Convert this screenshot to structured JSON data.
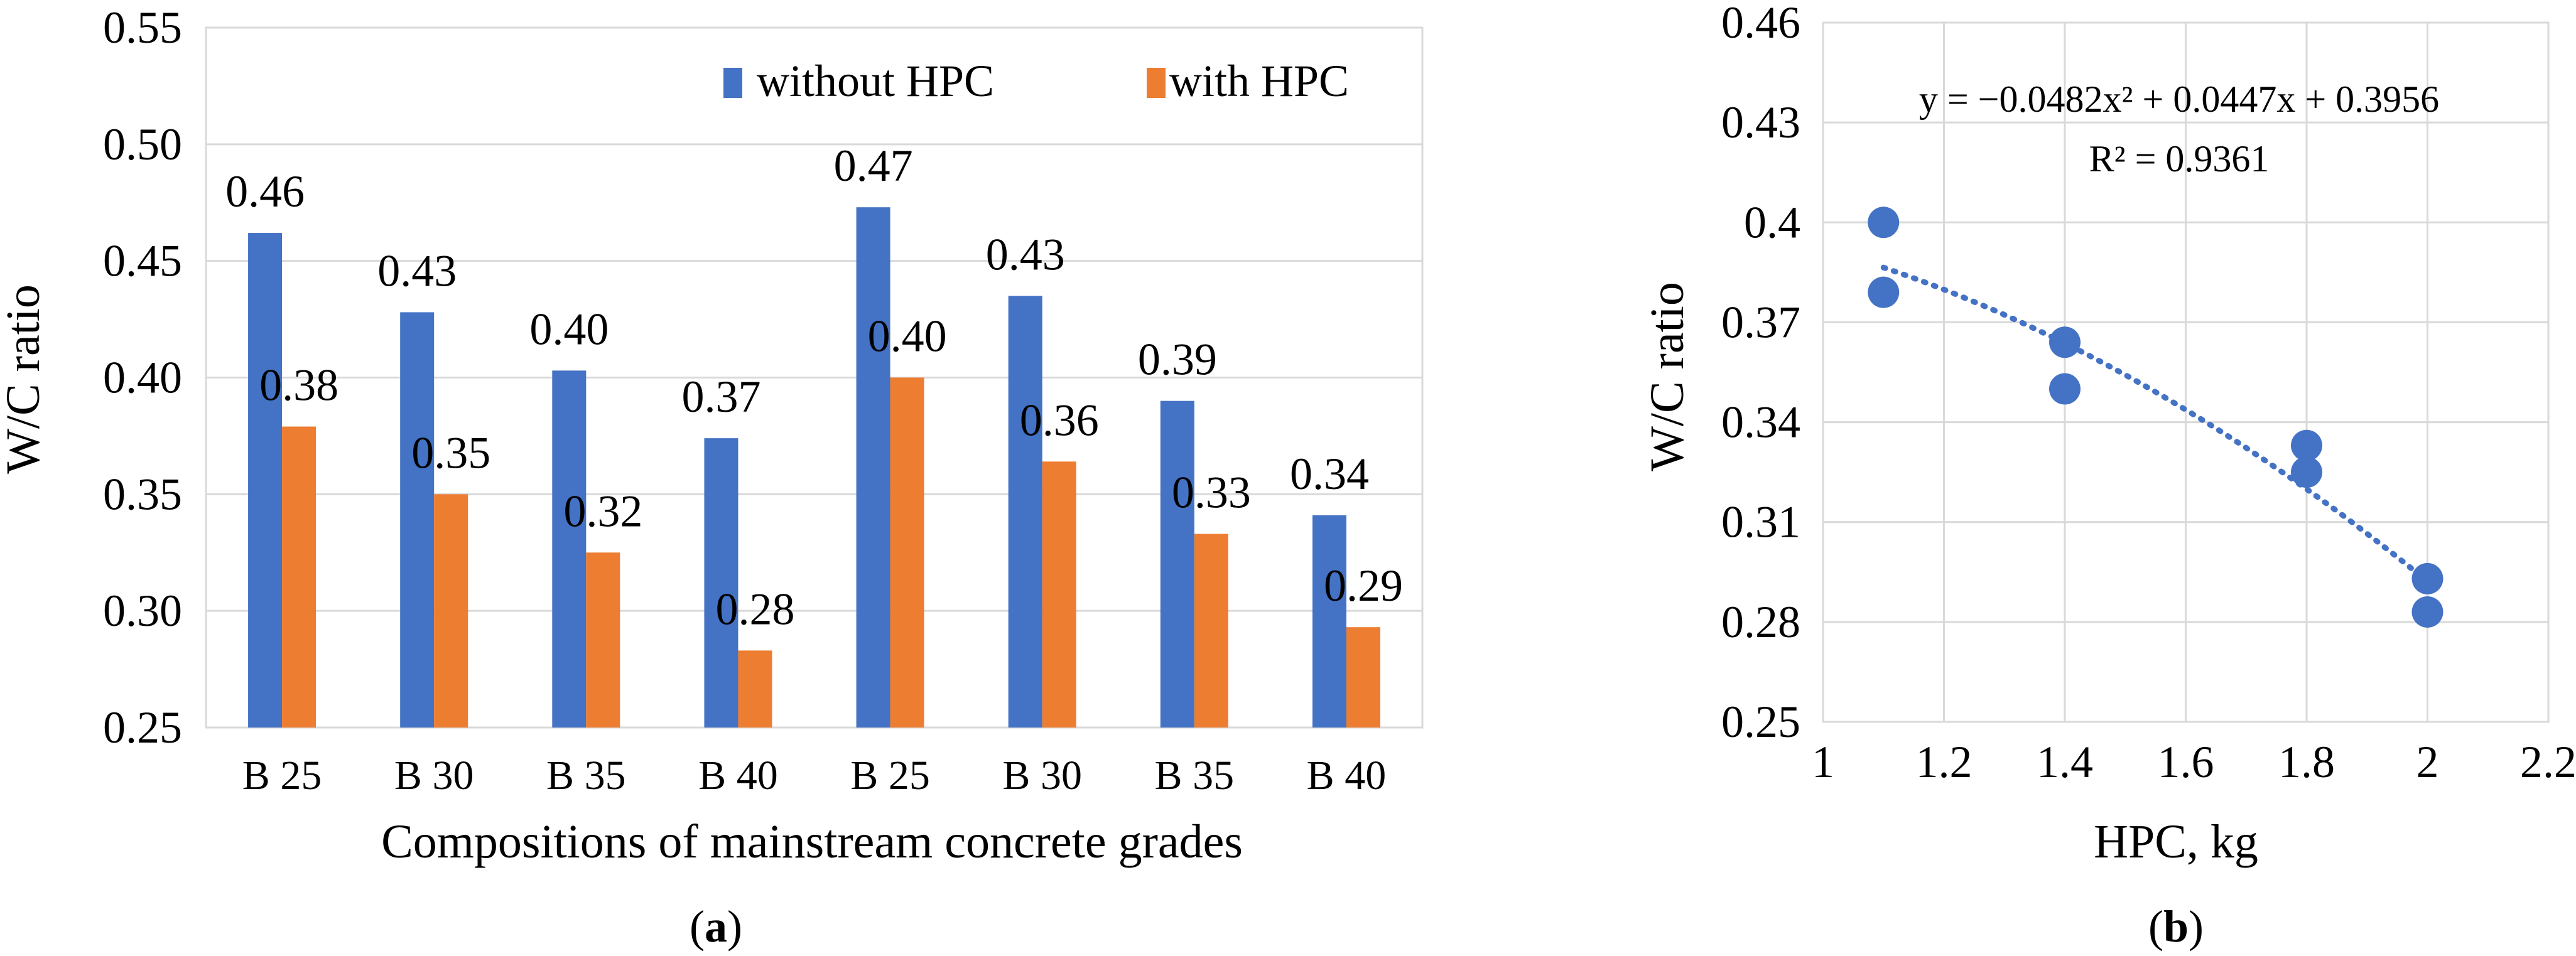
{
  "chart_data": [
    {
      "type": "bar",
      "panel_label": "(a)",
      "panel_letter": "a",
      "title": "",
      "xlabel": "Compositions of mainstream concrete grades",
      "ylabel": "W/C ratio",
      "categories": [
        "B 25",
        "B 30",
        "B 35",
        "B 40",
        "B 25",
        "B 30",
        "B 35",
        "B 40"
      ],
      "yticks": [
        "0.25",
        "0.30",
        "0.35",
        "0.40",
        "0.45",
        "0.50",
        "0.55"
      ],
      "ylim": [
        0.25,
        0.55
      ],
      "legend_position": "top-right",
      "grid": true,
      "series": [
        {
          "name": "without HPC",
          "color": "#4472C4",
          "values": [
            0.462,
            0.428,
            0.403,
            0.374,
            0.473,
            0.435,
            0.39,
            0.341
          ],
          "labels": [
            "0.46",
            "0.43",
            "0.40",
            "0.37",
            "0.47",
            "0.43",
            "0.39",
            "0.34"
          ]
        },
        {
          "name": "with HPC",
          "color": "#ED7D31",
          "values": [
            0.379,
            0.35,
            0.325,
            0.283,
            0.4,
            0.364,
            0.333,
            0.293
          ],
          "labels": [
            "0.38",
            "0.35",
            "0.32",
            "0.28",
            "0.40",
            "0.36",
            "0.33",
            "0.29"
          ]
        }
      ]
    },
    {
      "type": "scatter",
      "panel_label": "(b)",
      "panel_letter": "b",
      "title": "",
      "xlabel": "HPC, kg",
      "ylabel": "W/C ratio",
      "xlim": [
        1,
        2.2
      ],
      "ylim": [
        0.25,
        0.46
      ],
      "xticks": [
        1,
        1.2,
        1.4,
        1.6,
        1.8,
        2,
        2.2
      ],
      "xtick_labels": [
        "1",
        "1.2",
        "1.4",
        "1.6",
        "1.8",
        "2",
        "2.2"
      ],
      "yticks": [
        0.25,
        0.28,
        0.31,
        0.34,
        0.37,
        0.4,
        0.43,
        0.46
      ],
      "ytick_labels": [
        "0.25",
        "0.28",
        "0.31",
        "0.34",
        "0.37",
        "0.4",
        "0.43",
        "0.46"
      ],
      "grid": true,
      "series": [
        {
          "name": "W/C ratio",
          "color": "#4472C4",
          "x": [
            1.1,
            1.1,
            1.4,
            1.4,
            1.8,
            1.8,
            2.0,
            2.0
          ],
          "y": [
            0.4,
            0.379,
            0.364,
            0.35,
            0.333,
            0.325,
            0.293,
            0.283
          ]
        }
      ],
      "trendline": {
        "type": "polynomial",
        "coefficients": [
          -0.0482,
          0.0447,
          0.3956
        ],
        "x_range": [
          1.1,
          2.0
        ],
        "color": "#4472C4",
        "equation": "y = −0.0482x² + 0.0447x + 0.3956",
        "r_squared": "R² = 0.9361"
      }
    }
  ]
}
